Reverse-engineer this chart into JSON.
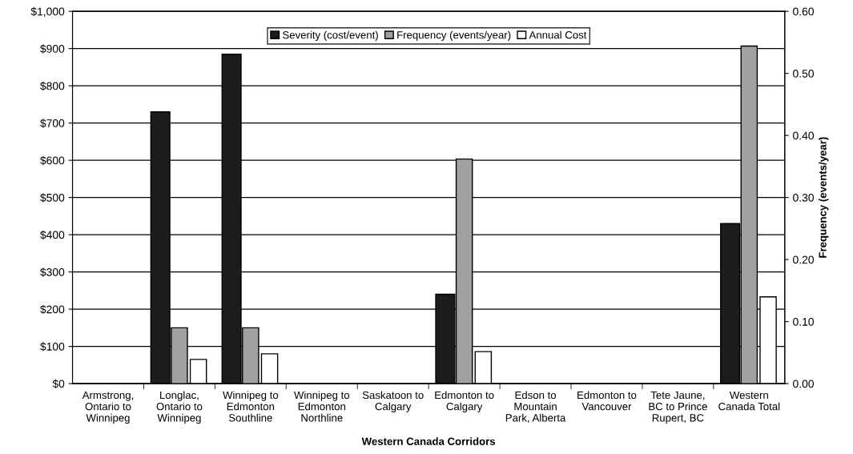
{
  "chart_data": {
    "type": "bar",
    "categories": [
      "Armstrong, Ontario to Winnipeg",
      "Longlac, Ontario to Winnipeg",
      "Winnipeg to Edmonton Southline",
      "Winnipeg to Edmonton Northline",
      "Saskatoon to Calgary",
      "Edmonton to Calgary",
      "Edson to Mountain Park, Alberta",
      "Edmonton to Vancouver",
      "Tete Jaune, BC to Prince Rupert, BC",
      "Western Canada Total"
    ],
    "series": [
      {
        "name": "Severity (cost/event)",
        "color": "#1c1c1c",
        "values": [
          null,
          730,
          885,
          null,
          null,
          240,
          null,
          null,
          null,
          430
        ]
      },
      {
        "name": "Frequency (events/year)",
        "color": "#a0a0a0",
        "axis": "y2",
        "values": [
          null,
          0.09,
          0.09,
          null,
          null,
          0.362,
          null,
          null,
          null,
          0.544
        ]
      },
      {
        "name": "Annual Cost",
        "color": "#ffffff",
        "values": [
          null,
          65,
          80,
          null,
          null,
          86,
          null,
          null,
          null,
          233
        ]
      }
    ],
    "xlabel": "Western Canada Corridors",
    "y2label": "Frequency (events/year)",
    "ylim": [
      0,
      1000
    ],
    "yticks": [
      {
        "value": 0,
        "label": "$0"
      },
      {
        "value": 100,
        "label": "$100"
      },
      {
        "value": 200,
        "label": "$200"
      },
      {
        "value": 300,
        "label": "$300"
      },
      {
        "value": 400,
        "label": "$400"
      },
      {
        "value": 500,
        "label": "$500"
      },
      {
        "value": 600,
        "label": "$600"
      },
      {
        "value": 700,
        "label": "$700"
      },
      {
        "value": 800,
        "label": "$800"
      },
      {
        "value": 900,
        "label": "$900"
      },
      {
        "value": 1000,
        "label": "$1,000"
      }
    ],
    "y2lim": [
      0,
      0.6
    ],
    "y2ticks": [
      {
        "value": 0,
        "label": "0.00"
      },
      {
        "value": 0.1,
        "label": "0.10"
      },
      {
        "value": 0.2,
        "label": "0.20"
      },
      {
        "value": 0.3,
        "label": "0.30"
      },
      {
        "value": 0.4,
        "label": "0.40"
      },
      {
        "value": 0.5,
        "label": "0.50"
      },
      {
        "value": 0.6,
        "label": "0.60"
      }
    ],
    "grid": "y",
    "legend": "top"
  }
}
